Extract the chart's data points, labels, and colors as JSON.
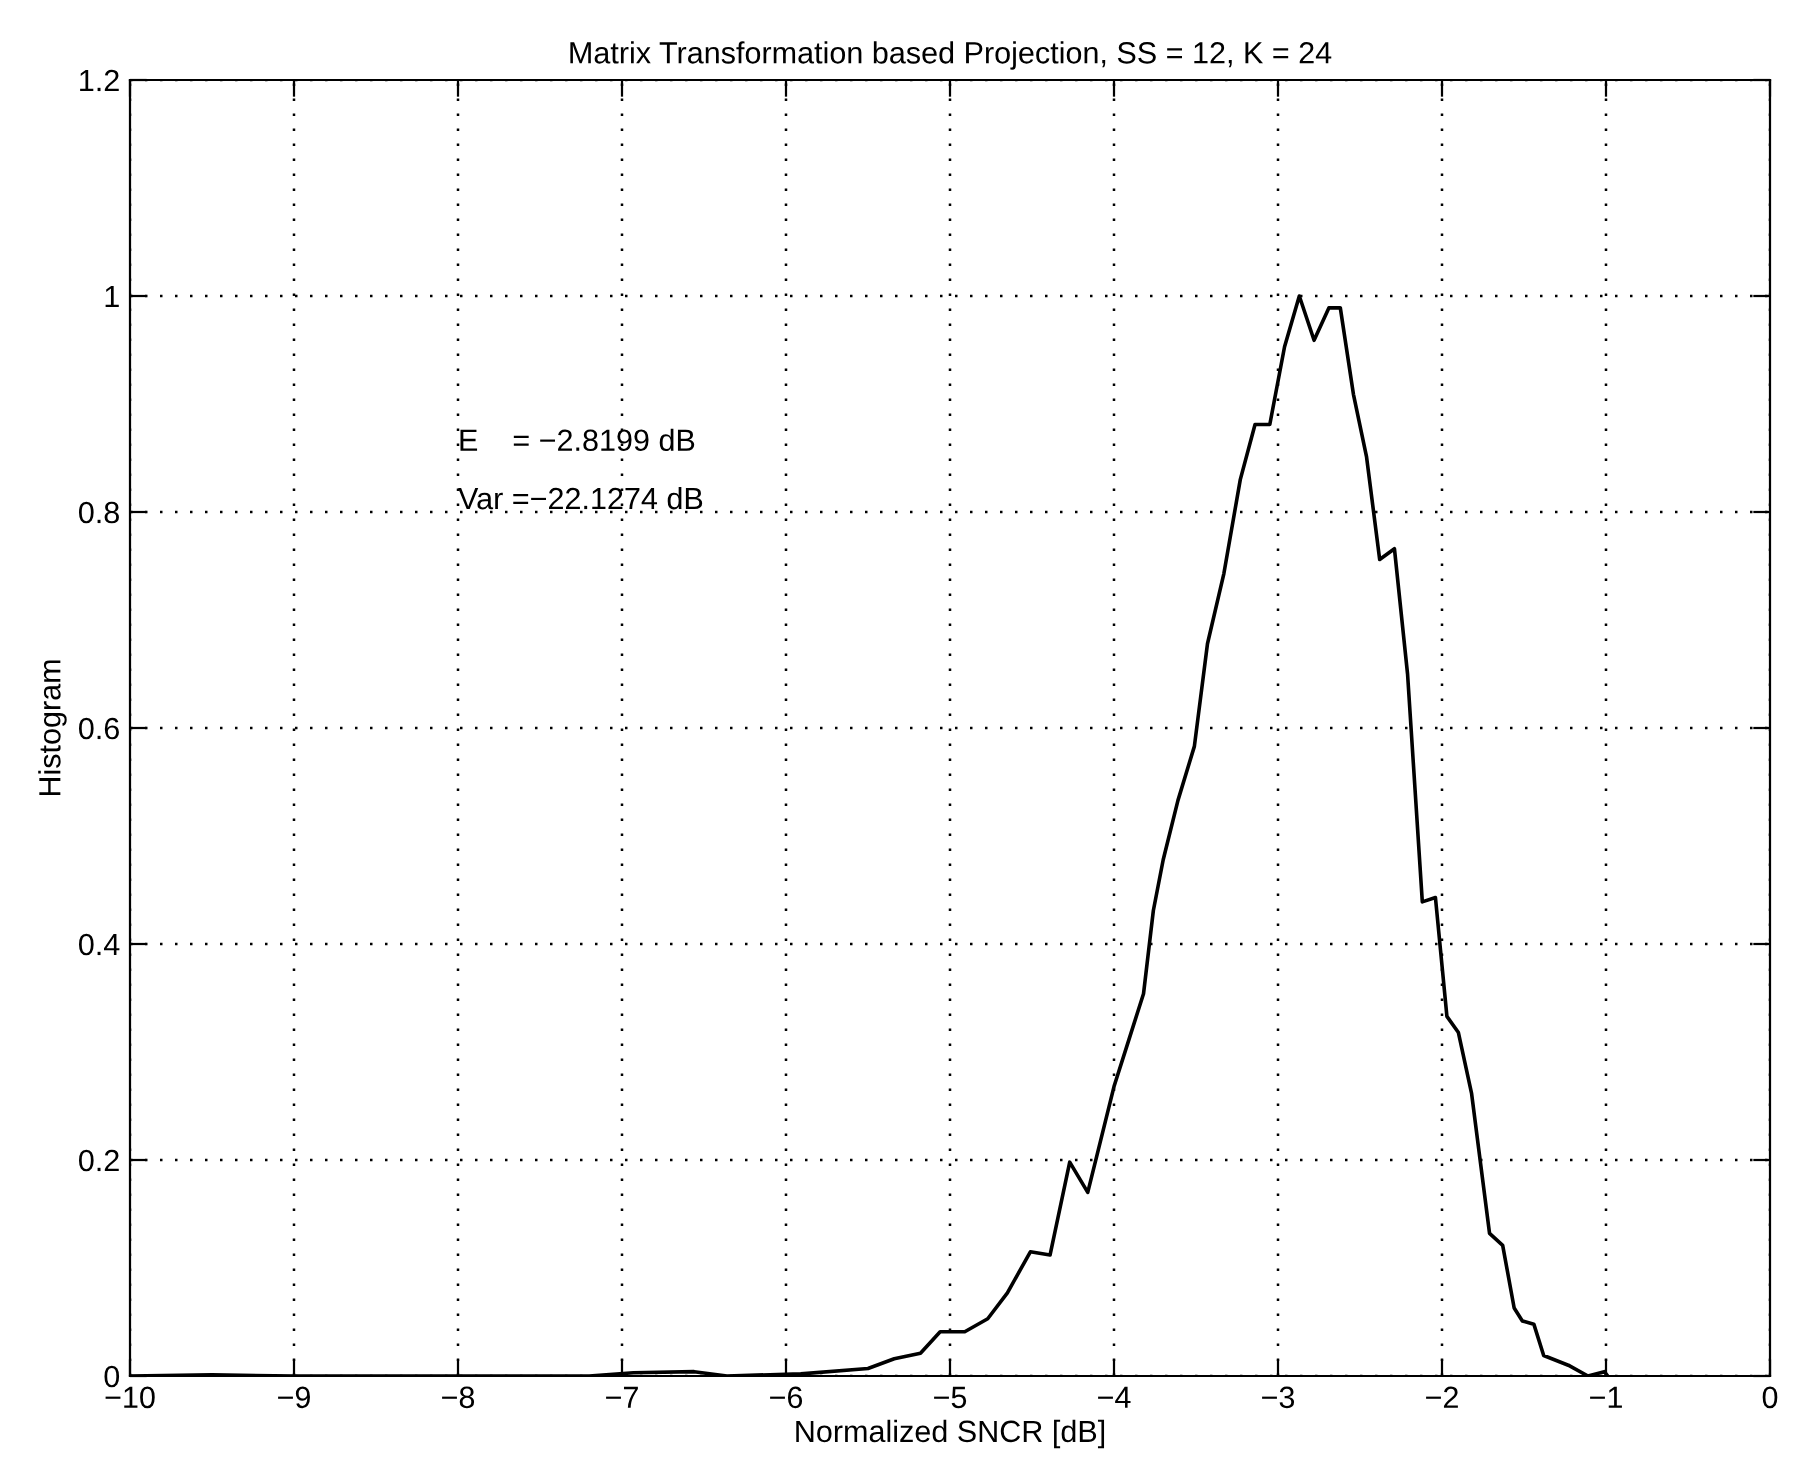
{
  "chart_data": {
    "type": "line",
    "title": "Matrix Transformation based Projection, SS = 12, K = 24",
    "xlabel": "Normalized SNCR [dB]",
    "ylabel": "Histogram",
    "series": [
      {
        "color": "#000000",
        "x": [
          -10,
          -9.5,
          -9,
          -8,
          -7.2,
          -6.93,
          -6.56,
          -6.36,
          -5.91,
          -5.5,
          -5.34,
          -5.18,
          -5.06,
          -4.91,
          -4.77,
          -4.65,
          -4.51,
          -4.39,
          -4.27,
          -4.16,
          -4.0,
          -3.91,
          -3.82,
          -3.76,
          -3.7,
          -3.61,
          -3.51,
          -3.43,
          -3.33,
          -3.23,
          -3.14,
          -3.05,
          -2.96,
          -2.87,
          -2.78,
          -2.69,
          -2.62,
          -2.54,
          -2.46,
          -2.38,
          -2.29,
          -2.21,
          -2.12,
          -2.04,
          -1.97,
          -1.9,
          -1.82,
          -1.71,
          -1.63,
          -1.56,
          -1.51,
          -1.44,
          -1.38,
          -1.23,
          -1.11,
          -1.01,
          -0.99
        ],
        "values": [
          0,
          0.001,
          0,
          0,
          0,
          0.003,
          0.004,
          0,
          0.002,
          0.007,
          0.016,
          0.021,
          0.041,
          0.041,
          0.053,
          0.077,
          0.115,
          0.112,
          0.198,
          0.17,
          0.268,
          0.311,
          0.354,
          0.431,
          0.478,
          0.533,
          0.583,
          0.678,
          0.743,
          0.83,
          0.881,
          0.881,
          0.953,
          1.0,
          0.959,
          0.989,
          0.989,
          0.909,
          0.851,
          0.756,
          0.766,
          0.65,
          0.439,
          0.443,
          0.333,
          0.318,
          0.262,
          0.132,
          0.121,
          0.063,
          0.051,
          0.048,
          0.019,
          0.01,
          0,
          0.004,
          0
        ]
      }
    ],
    "xlim": [
      -10,
      0
    ],
    "xticks": [
      {
        "value": -10,
        "label": "−10"
      },
      {
        "value": -9,
        "label": "−9"
      },
      {
        "value": -8,
        "label": "−8"
      },
      {
        "value": -7,
        "label": "−7"
      },
      {
        "value": -6,
        "label": "−6"
      },
      {
        "value": -5,
        "label": "−5"
      },
      {
        "value": -4,
        "label": "−4"
      },
      {
        "value": -3,
        "label": "−3"
      },
      {
        "value": -2,
        "label": "−2"
      },
      {
        "value": -1,
        "label": "−1"
      },
      0
    ],
    "ylim": [
      0,
      1.2
    ],
    "yticks": [
      0,
      0.2,
      0.4,
      0.6,
      0.8,
      1,
      1.2
    ],
    "grid": true,
    "line_style": "solid",
    "marker": "none",
    "annotations": [
      "E    = −2.8199 dB",
      "Var =−22.1274 dB"
    ]
  }
}
